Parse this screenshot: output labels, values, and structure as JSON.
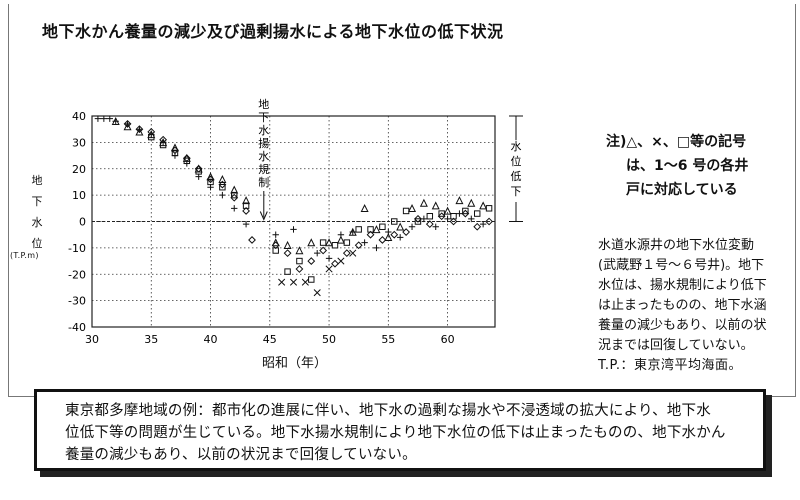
{
  "title": "地下水かん養量の減少及び過剰揚水による地下水位の低下状況",
  "axis": {
    "ylabel_chars": [
      "地",
      "下",
      "水",
      "位"
    ],
    "y_unit": "(T.P.m)",
    "xlabel": "昭和（年）"
  },
  "chart_data": {
    "type": "scatter",
    "title": "地下水かん養量の減少及び過剰揚水による地下水位の低下状況",
    "xlabel": "昭和（年）",
    "ylabel": "地下水位 (T.P.m)",
    "xlim": [
      30,
      64
    ],
    "ylim": [
      -40,
      40
    ],
    "xticks": [
      30,
      35,
      40,
      45,
      50,
      55,
      60
    ],
    "yticks": [
      40,
      30,
      20,
      10,
      0,
      -10,
      -20,
      -30,
      -40
    ],
    "grid": true,
    "series": [
      {
        "marker": "plus",
        "points": [
          [
            30.5,
            39
          ],
          [
            31,
            39
          ],
          [
            31.5,
            39
          ],
          [
            32,
            38
          ],
          [
            33,
            37
          ],
          [
            34,
            35
          ],
          [
            35,
            33
          ],
          [
            36,
            30
          ],
          [
            37,
            25
          ],
          [
            38,
            22
          ],
          [
            39,
            17
          ],
          [
            40,
            13
          ],
          [
            41,
            10
          ],
          [
            42,
            5
          ],
          [
            43,
            -1
          ],
          [
            45.5,
            -5
          ],
          [
            47,
            -3
          ],
          [
            49,
            -12
          ],
          [
            50,
            -14
          ],
          [
            51,
            -5
          ],
          [
            52,
            -4
          ],
          [
            53,
            -8
          ],
          [
            54,
            -10
          ],
          [
            55,
            -4
          ],
          [
            56,
            -6
          ],
          [
            57,
            -2
          ],
          [
            58,
            1
          ],
          [
            59,
            -2
          ],
          [
            60,
            1
          ],
          [
            61,
            3
          ],
          [
            62,
            1
          ],
          [
            63,
            -1
          ]
        ]
      },
      {
        "marker": "triangle",
        "points": [
          [
            32,
            38
          ],
          [
            33,
            36
          ],
          [
            34,
            34
          ],
          [
            35,
            33
          ],
          [
            36,
            30
          ],
          [
            37,
            28
          ],
          [
            38,
            24
          ],
          [
            39,
            20
          ],
          [
            40,
            17
          ],
          [
            41,
            16
          ],
          [
            42,
            12
          ],
          [
            43,
            8
          ],
          [
            45.5,
            -8
          ],
          [
            46.5,
            -9
          ],
          [
            47.5,
            -11
          ],
          [
            48.5,
            -8
          ],
          [
            50,
            -8
          ],
          [
            51,
            -7
          ],
          [
            52,
            -4
          ],
          [
            53,
            5
          ],
          [
            54,
            -3
          ],
          [
            55,
            -6
          ],
          [
            56,
            -2
          ],
          [
            57,
            5
          ],
          [
            58,
            7
          ],
          [
            59,
            6
          ],
          [
            60,
            4
          ],
          [
            61,
            8
          ],
          [
            62,
            7
          ],
          [
            63,
            6
          ]
        ]
      },
      {
        "marker": "diamond",
        "points": [
          [
            33,
            37
          ],
          [
            34,
            35
          ],
          [
            35,
            34
          ],
          [
            36,
            31
          ],
          [
            37,
            27
          ],
          [
            38,
            24
          ],
          [
            39,
            20
          ],
          [
            40,
            16
          ],
          [
            41,
            14
          ],
          [
            42,
            9
          ],
          [
            43,
            4
          ],
          [
            43.5,
            -7
          ],
          [
            45.5,
            -9
          ],
          [
            46.5,
            -12
          ],
          [
            47.5,
            -18
          ],
          [
            48.5,
            -15
          ],
          [
            49.5,
            -11
          ],
          [
            50.5,
            -16
          ],
          [
            51.5,
            -12
          ],
          [
            52.5,
            -9
          ],
          [
            53.5,
            -5
          ],
          [
            54.5,
            -7
          ],
          [
            55.5,
            -5
          ],
          [
            56.5,
            -4
          ],
          [
            57.5,
            1
          ],
          [
            58.5,
            -1
          ],
          [
            59.5,
            2
          ],
          [
            60.5,
            0
          ],
          [
            61.5,
            3
          ],
          [
            62.5,
            -2
          ],
          [
            63.5,
            0
          ]
        ]
      },
      {
        "marker": "square",
        "points": [
          [
            35,
            32
          ],
          [
            36,
            29
          ],
          [
            37,
            26
          ],
          [
            38,
            23
          ],
          [
            39,
            19
          ],
          [
            40,
            15
          ],
          [
            41,
            13
          ],
          [
            42,
            10
          ],
          [
            43,
            6
          ],
          [
            45.5,
            -11
          ],
          [
            46.5,
            -19
          ],
          [
            47.5,
            -15
          ],
          [
            48.5,
            -22
          ],
          [
            49.5,
            -8
          ],
          [
            50.5,
            -9
          ],
          [
            51.5,
            -8
          ],
          [
            52.5,
            -3
          ],
          [
            53.5,
            -3
          ],
          [
            54.5,
            -2
          ],
          [
            55.5,
            0
          ],
          [
            56.5,
            4
          ],
          [
            57.5,
            0
          ],
          [
            58.5,
            2
          ],
          [
            59.5,
            3
          ],
          [
            60.5,
            2
          ],
          [
            61.5,
            4
          ],
          [
            62.5,
            3
          ],
          [
            63.5,
            5
          ]
        ]
      },
      {
        "marker": "x",
        "points": [
          [
            46,
            -23
          ],
          [
            47,
            -23
          ],
          [
            48,
            -23
          ],
          [
            49,
            -27
          ],
          [
            50,
            -18
          ],
          [
            51,
            -15
          ],
          [
            52,
            -12
          ]
        ]
      }
    ],
    "annotations": {
      "arrow_label": "地下水揚水規制",
      "arrow_x": 45,
      "range_label": "水位低下"
    }
  },
  "note": {
    "line1": "注)△、×、□等の記号",
    "line2": "は、1～6 号の各井",
    "line3": "戸に対応している"
  },
  "description": {
    "lines": [
      "水道水源井の地下水位変動",
      "(武蔵野１号～６号井)。地下",
      "水位は、揚水規制により低下",
      "は止まったものの、地下水涵",
      "養量の減少もあり、以前の状",
      "況までは回復していない。",
      "T.P.：東京湾平均海面。"
    ]
  },
  "caption": {
    "lines": [
      "東京都多摩地域の例：都市化の進展に伴い、地下水の過剰な揚水や不浸透域の拡大により、地下水",
      "位低下等の問題が生じている。地下水揚水規制により地下水位の低下は止まったものの、地下水かん",
      "養量の減少もあり、以前の状況まで回復していない。"
    ]
  }
}
